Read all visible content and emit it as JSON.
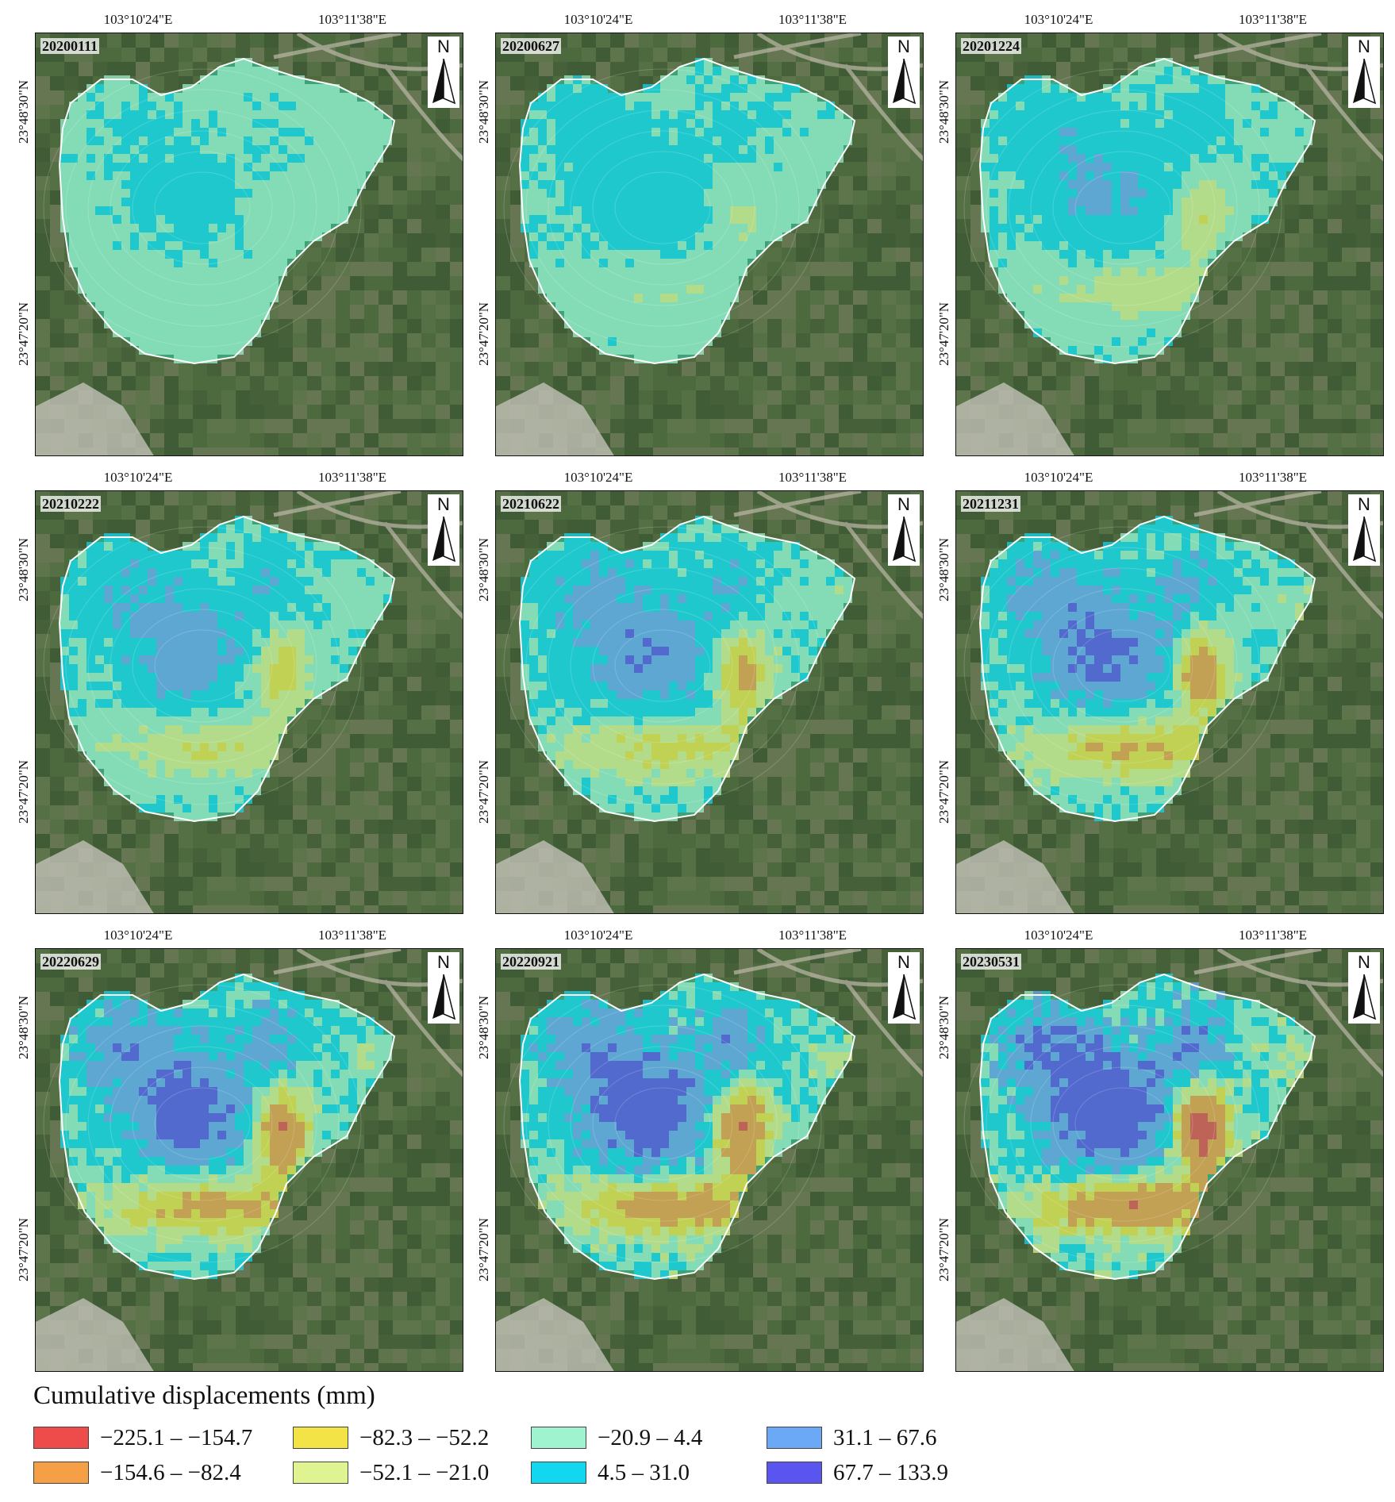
{
  "axes": {
    "lon_labels": [
      "103°10'24\"E",
      "103°11'38\"E"
    ],
    "lat_labels": [
      "23°48'30\"N",
      "23°47'20\"N"
    ],
    "north_label": "N"
  },
  "panels": [
    {
      "date": "20200111",
      "stage": 0
    },
    {
      "date": "20200627",
      "stage": 1
    },
    {
      "date": "20201224",
      "stage": 2
    },
    {
      "date": "20210222",
      "stage": 3
    },
    {
      "date": "20210622",
      "stage": 4
    },
    {
      "date": "20211231",
      "stage": 5
    },
    {
      "date": "20220629",
      "stage": 6
    },
    {
      "date": "20220921",
      "stage": 7
    },
    {
      "date": "20230531",
      "stage": 8
    }
  ],
  "legend": {
    "title": "Cumulative displacements (mm)",
    "classes": [
      {
        "label": "−225.1 – −154.7",
        "color": "#ee4b4b"
      },
      {
        "label": "−154.6 – −82.4",
        "color": "#f5a047"
      },
      {
        "label": "−82.3 – −52.2",
        "color": "#f3e347"
      },
      {
        "label": "−52.1 – −21.0",
        "color": "#dff391"
      },
      {
        "label": "−20.9 – 4.4",
        "color": "#9ff3cf"
      },
      {
        "label": "4.5 – 31.0",
        "color": "#12d7ee"
      },
      {
        "label": "31.1 – 67.6",
        "color": "#6ba9f6"
      },
      {
        "label": "67.7 – 133.9",
        "color": "#5a55ee"
      }
    ]
  }
}
